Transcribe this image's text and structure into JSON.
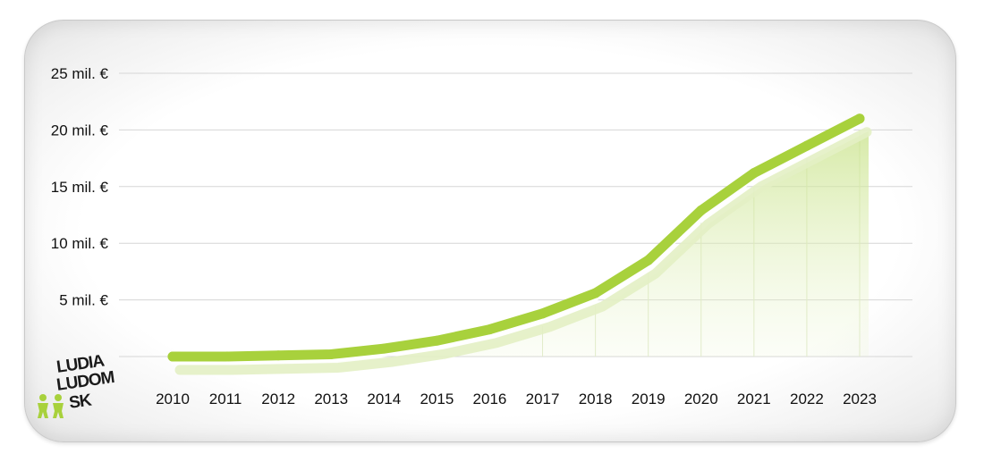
{
  "chart_data": {
    "type": "area",
    "categories": [
      "2010",
      "2011",
      "2012",
      "2013",
      "2014",
      "2015",
      "2016",
      "2017",
      "2018",
      "2019",
      "2020",
      "2021",
      "2022",
      "2023"
    ],
    "series": [
      {
        "values": [
          0.0,
          0.0,
          0.1,
          0.2,
          0.7,
          1.4,
          2.4,
          3.8,
          5.6,
          8.5,
          12.9,
          16.2,
          18.6,
          21.0
        ]
      }
    ],
    "y_tick_labels": [
      "",
      "5 mil. €",
      "10 mil. €",
      "15 mil. €",
      "20 mil. €",
      "25 mil. €"
    ],
    "y_ticks": [
      0,
      5,
      10,
      15,
      20,
      25
    ],
    "ylim": [
      0,
      25
    ],
    "grid": true,
    "line_color": "#a8d13c",
    "fill_color": "#d9ecaa"
  },
  "logo": {
    "text_lines": [
      "LUDIA",
      "LUDOM",
      "SK"
    ],
    "icon": "people-icon",
    "color": "#a8d13c"
  }
}
